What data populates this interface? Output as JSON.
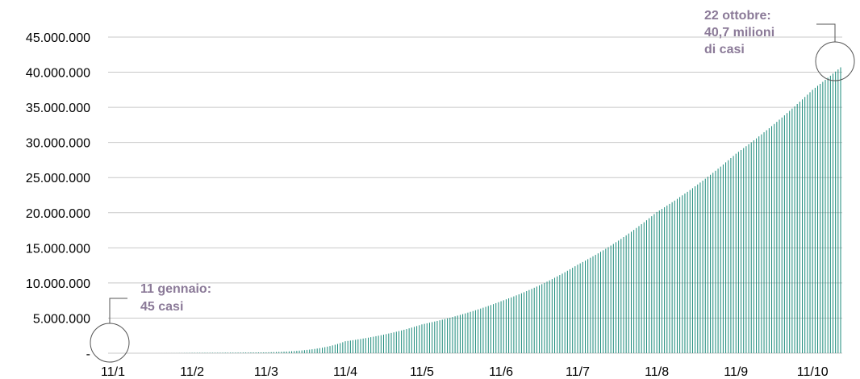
{
  "chart_data": {
    "type": "bar",
    "title": "",
    "xlabel": "",
    "ylabel": "",
    "ylim": [
      0,
      45000000
    ],
    "yticks": [
      0,
      5000000,
      10000000,
      15000000,
      20000000,
      25000000,
      30000000,
      35000000,
      40000000,
      45000000
    ],
    "ytick_labels": [
      "-",
      "5.000.000",
      "10.000.000",
      "15.000.000",
      "20.000.000",
      "25.000.000",
      "30.000.000",
      "35.000.000",
      "40.000.000",
      "45.000.000"
    ],
    "x_start": "2020-01-11",
    "x_end": "2020-10-22",
    "xtick_labels": [
      "11/1",
      "11/2",
      "11/3",
      "11/4",
      "11/5",
      "11/6",
      "11/7",
      "11/8",
      "11/9",
      "11/10"
    ],
    "grid": true,
    "series": [
      {
        "color": "#1a8a7a",
        "points": [
          [
            "2020-01-11",
            45
          ],
          [
            "2020-02-11",
            45000
          ],
          [
            "2020-03-11",
            120000
          ],
          [
            "2020-04-11",
            1700000
          ],
          [
            "2020-05-11",
            4100000
          ],
          [
            "2020-06-11",
            7400000
          ],
          [
            "2020-07-11",
            12600000
          ],
          [
            "2020-08-11",
            20100000
          ],
          [
            "2020-09-11",
            28400000
          ],
          [
            "2020-10-11",
            37500000
          ],
          [
            "2020-10-22",
            40700000
          ]
        ]
      }
    ],
    "annotations": [
      {
        "lines": [
          "11 gennaio:",
          "45 casi"
        ],
        "date": "2020-01-11",
        "value": 45
      },
      {
        "lines": [
          "22 ottobre:",
          "40,7 milioni",
          "di  casi"
        ],
        "date": "2020-10-22",
        "value": 40700000
      }
    ]
  },
  "colors": {
    "bars": "#1a8a7a",
    "grid": "#c8c8c8",
    "annotation_text": "#8b7a98",
    "callout": "#555555"
  }
}
